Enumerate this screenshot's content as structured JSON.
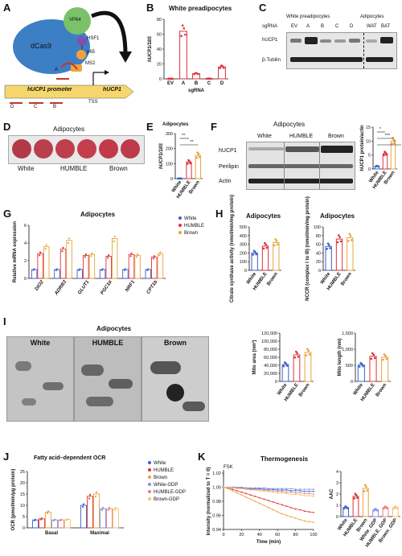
{
  "panels": {
    "A": {
      "letter": "A",
      "labels": {
        "vp64": "VP64",
        "dcas9": "dCas9",
        "hsf1": "HSF1",
        "p65": "p65",
        "ms2": "MS2",
        "a": "A",
        "promoter": "hUCP1 promoter",
        "gene": "hUCP1",
        "tss": "TSS",
        "d": "D",
        "c": "C",
        "b": "B"
      }
    },
    "B": {
      "letter": "B",
      "title": "White preadipocytes"
    },
    "C": {
      "letter": "C",
      "group_white": "White preadipocytes",
      "group_adipo": "Adipocytes",
      "sgrna_label": "sgRNA",
      "lanes_white": [
        "EV",
        "A",
        "B",
        "C",
        "D"
      ],
      "lanes_adipo": [
        "WAT",
        "BAT"
      ],
      "row1": "hUCP1",
      "row2": "β-Tubilin"
    },
    "D": {
      "letter": "D",
      "title": "Adipocytes",
      "groups": [
        "White",
        "HUMBLE",
        "Brown"
      ]
    },
    "E": {
      "letter": "E",
      "title": "Adipocytes"
    },
    "F": {
      "letter": "F",
      "title": "Adipocytes",
      "groups": [
        "White",
        "HUMBLE",
        "Brown"
      ],
      "rows": [
        "hUCP1",
        "Perilipin",
        "Actin"
      ]
    },
    "G": {
      "letter": "G",
      "title": "Adipocytes"
    },
    "H": {
      "letter": "H",
      "title_left": "Adipocytes",
      "title_right": "Adipocytes"
    },
    "I": {
      "letter": "I",
      "title": "Adipocytes",
      "em_labels": [
        "White",
        "HUMBLE",
        "Brown"
      ]
    },
    "J": {
      "letter": "J",
      "title": "Fatty acid–dependent OCR"
    },
    "K": {
      "letter": "K",
      "title": "Thermogenesis",
      "annotation": "FSK"
    }
  },
  "colors": {
    "white": "#3a5fcd",
    "humble": "#e0303a",
    "brown": "#e8a33c",
    "white_gdp": "#7f93e6",
    "humble_gdp": "#f07d80",
    "brown_gdp": "#f3c27a"
  },
  "chart_data": [
    {
      "id": "B",
      "type": "bar",
      "title": "White preadipocytes",
      "xlabel": "sgRNA",
      "ylabel": "hUCP1/18S",
      "categories": [
        "EV",
        "A",
        "B",
        "C",
        "D"
      ],
      "values": [
        0.2,
        64,
        7,
        0.3,
        16
      ],
      "ylim": [
        0,
        80
      ],
      "yticks": [
        0,
        20,
        40,
        60,
        80
      ]
    },
    {
      "id": "E",
      "type": "bar",
      "title": "Adipocytes",
      "ylabel": "hUCP1/18S",
      "categories": [
        "White",
        "HUMBLE",
        "Brown"
      ],
      "values": [
        1,
        110,
        155
      ],
      "ylim": [
        0,
        300
      ],
      "yticks": [
        0,
        100,
        200,
        300
      ],
      "annotations": [
        "**",
        "**"
      ]
    },
    {
      "id": "F",
      "type": "bar",
      "ylabel": "hUCP1 protein/actin",
      "categories": [
        "White",
        "HUMBLE",
        "Brown"
      ],
      "values": [
        1,
        5.5,
        10
      ],
      "ylim": [
        0,
        15
      ],
      "yticks": [
        0,
        5,
        10,
        15
      ],
      "annotations": [
        "*",
        "***",
        "*"
      ]
    },
    {
      "id": "G",
      "type": "bar",
      "title": "Adipocytes",
      "ylabel": "Relative mRNA expression",
      "categories": [
        "DIO2",
        "ADRB3",
        "GLUT1",
        "PGC1α",
        "NRF1",
        "CPT1b"
      ],
      "series": [
        {
          "name": "White",
          "values": [
            1,
            1,
            1,
            1,
            1,
            1
          ]
        },
        {
          "name": "HUMBLE",
          "values": [
            2.8,
            3.3,
            2.6,
            2.5,
            2.7,
            2.4
          ]
        },
        {
          "name": "Brown",
          "values": [
            3.6,
            4.3,
            2.7,
            4.5,
            2.6,
            2.8
          ]
        }
      ],
      "ylim": [
        0,
        6
      ],
      "yticks": [
        0,
        2,
        4,
        6
      ]
    },
    {
      "id": "H1",
      "type": "bar",
      "title": "Adipocytes",
      "ylabel": "Citrate synthase activity (nmol/min/mg protein)",
      "categories": [
        "White",
        "HUMBLE",
        "Brown"
      ],
      "values": [
        200,
        280,
        320
      ],
      "ylim": [
        0,
        500
      ],
      "yticks": [
        0,
        100,
        200,
        300,
        400,
        500
      ]
    },
    {
      "id": "H2",
      "type": "bar",
      "title": "Adipocytes",
      "ylabel": "NCCR (complex I to III) (nmol/min/mg protein)",
      "categories": [
        "White",
        "HUMBLE",
        "Brown"
      ],
      "values": [
        55,
        72,
        75
      ],
      "ylim": [
        0,
        100
      ],
      "yticks": [
        0,
        20,
        40,
        60,
        80,
        100
      ]
    },
    {
      "id": "I1",
      "type": "bar",
      "ylabel": "Mito area (nm²)",
      "categories": [
        "White",
        "HUMBLE",
        "Brown"
      ],
      "values": [
        42000,
        66000,
        72000
      ],
      "ylim": [
        0,
        120000
      ],
      "yticks": [
        0,
        20000,
        40000,
        60000,
        80000,
        100000,
        120000
      ]
    },
    {
      "id": "I2",
      "type": "bar",
      "ylabel": "Mito length (nm)",
      "categories": [
        "White",
        "HUMBLE",
        "Brown"
      ],
      "values": [
        510,
        780,
        750
      ],
      "ylim": [
        0,
        1500
      ],
      "yticks": [
        0,
        500,
        1000,
        1500
      ]
    },
    {
      "id": "J",
      "type": "bar",
      "title": "Fatty acid–dependent OCR",
      "ylabel": "OCR (pmol/min/μg protein)",
      "categories": [
        "Basal",
        "Maximal"
      ],
      "series": [
        {
          "name": "White",
          "values": [
            3.5,
            10
          ]
        },
        {
          "name": "HUMBLE",
          "values": [
            4,
            14
          ]
        },
        {
          "name": "Brown",
          "values": [
            7,
            15
          ]
        },
        {
          "name": "White-GDP",
          "values": [
            3.5,
            8.5
          ]
        },
        {
          "name": "HUMBLE-GDP",
          "values": [
            3.5,
            8.5
          ]
        },
        {
          "name": "Brown-GDP",
          "values": [
            3.7,
            8.5
          ]
        }
      ],
      "ylim": [
        0,
        25
      ],
      "yticks": [
        0,
        5,
        10,
        15,
        20,
        25
      ]
    },
    {
      "id": "K1",
      "type": "line",
      "title": "Thermogenesis",
      "xlabel": "Time (min)",
      "ylabel": "Intensity (normalized to T = 0)",
      "xlim": [
        0,
        100
      ],
      "ylim": [
        0.94,
        1.02
      ],
      "xticks": [
        0,
        20,
        40,
        60,
        80,
        100
      ],
      "yticks": [
        0.94,
        0.96,
        0.98,
        1.0,
        1.02
      ],
      "x": [
        0,
        5,
        10,
        15,
        20,
        25,
        30,
        35,
        40,
        45,
        50,
        55,
        60,
        65,
        70,
        75,
        80,
        85,
        90,
        95,
        100
      ],
      "series": [
        {
          "name": "White",
          "values": [
            1.0,
            1.0,
            1.0,
            0.999,
            0.999,
            0.999,
            0.998,
            0.998,
            0.998,
            0.997,
            0.997,
            0.997,
            0.996,
            0.996,
            0.996,
            0.995,
            0.995,
            0.995,
            0.994,
            0.994,
            0.994
          ]
        },
        {
          "name": "HUMBLE",
          "values": [
            1.0,
            0.999,
            0.997,
            0.995,
            0.993,
            0.991,
            0.989,
            0.987,
            0.985,
            0.983,
            0.981,
            0.979,
            0.977,
            0.975,
            0.973,
            0.971,
            0.969,
            0.968,
            0.966,
            0.965,
            0.964
          ]
        },
        {
          "name": "Brown",
          "values": [
            1.0,
            0.998,
            0.995,
            0.992,
            0.989,
            0.986,
            0.983,
            0.98,
            0.977,
            0.974,
            0.971,
            0.968,
            0.965,
            0.962,
            0.96,
            0.958,
            0.956,
            0.954,
            0.952,
            0.951,
            0.95
          ]
        },
        {
          "name": "White-GDP",
          "values": [
            1.0,
            1.0,
            1.0,
            1.0,
            1.0,
            0.999,
            0.999,
            0.999,
            0.999,
            0.999,
            0.998,
            0.998,
            0.998,
            0.998,
            0.998,
            0.998,
            0.997,
            0.997,
            0.997,
            0.997,
            0.997
          ]
        },
        {
          "name": "HUMBLE-GDP",
          "values": [
            1.0,
            1.0,
            0.999,
            0.999,
            0.998,
            0.998,
            0.997,
            0.997,
            0.996,
            0.996,
            0.995,
            0.995,
            0.994,
            0.994,
            0.993,
            0.993,
            0.992,
            0.992,
            0.991,
            0.991,
            0.99
          ]
        },
        {
          "name": "Brown-GDP",
          "values": [
            1.0,
            1.0,
            0.999,
            0.998,
            0.998,
            0.997,
            0.996,
            0.996,
            0.995,
            0.994,
            0.994,
            0.993,
            0.992,
            0.992,
            0.991,
            0.99,
            0.99,
            0.989,
            0.988,
            0.988,
            0.987
          ]
        }
      ]
    },
    {
      "id": "K2",
      "type": "bar",
      "ylabel": "AAC",
      "categories": [
        "White",
        "HUMBLE",
        "Brown",
        "White_GDP",
        "HUMBLE_GDP",
        "Brown_GDP"
      ],
      "values": [
        0.8,
        1.8,
        2.5,
        0.6,
        0.8,
        0.8
      ],
      "ylim": [
        0,
        4
      ],
      "yticks": [
        0,
        1,
        2,
        3,
        4
      ]
    }
  ]
}
